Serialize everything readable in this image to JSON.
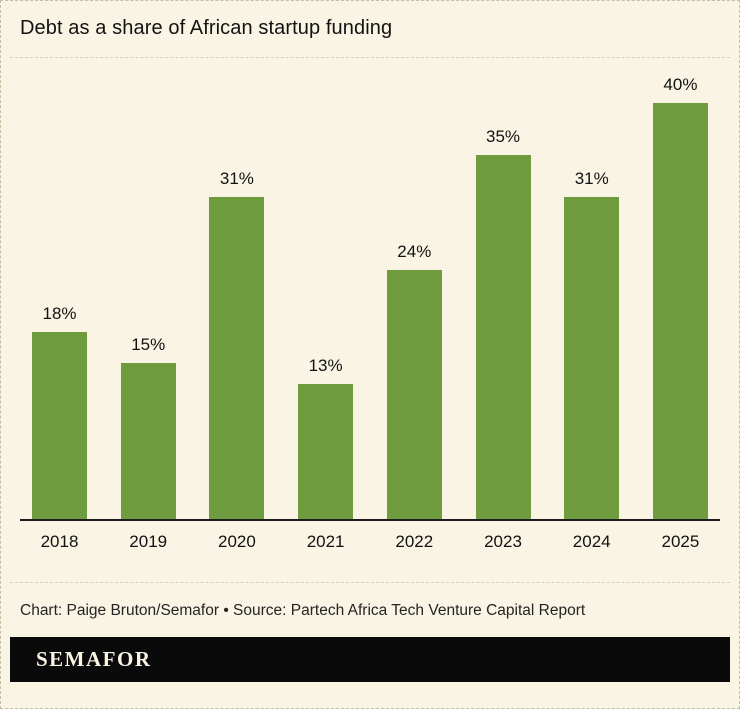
{
  "chart_data": {
    "type": "bar",
    "title": "Debt as a share of African startup funding",
    "categories": [
      "2018",
      "2019",
      "2020",
      "2021",
      "2022",
      "2023",
      "2024",
      "2025"
    ],
    "values": [
      18,
      15,
      31,
      13,
      24,
      35,
      31,
      40
    ],
    "value_labels": [
      "18%",
      "15%",
      "31%",
      "13%",
      "24%",
      "35%",
      "31%",
      "40%"
    ],
    "xlabel": "",
    "ylabel": "",
    "ylim": [
      0,
      43
    ],
    "grid": false,
    "legend": false,
    "bar_color": "#6f9c3e"
  },
  "footer": {
    "credit": "Chart: Paige Bruton/Semafor • Source: Partech Africa Tech Venture Capital Report",
    "logo": "SEMAFOR"
  },
  "colors": {
    "background": "#f9f4e3",
    "bar": "#6f9c3e",
    "text": "#121212",
    "divider": "#d9d0b2",
    "logo_bg": "#0a0a0a",
    "logo_text": "#f9f4e3"
  }
}
